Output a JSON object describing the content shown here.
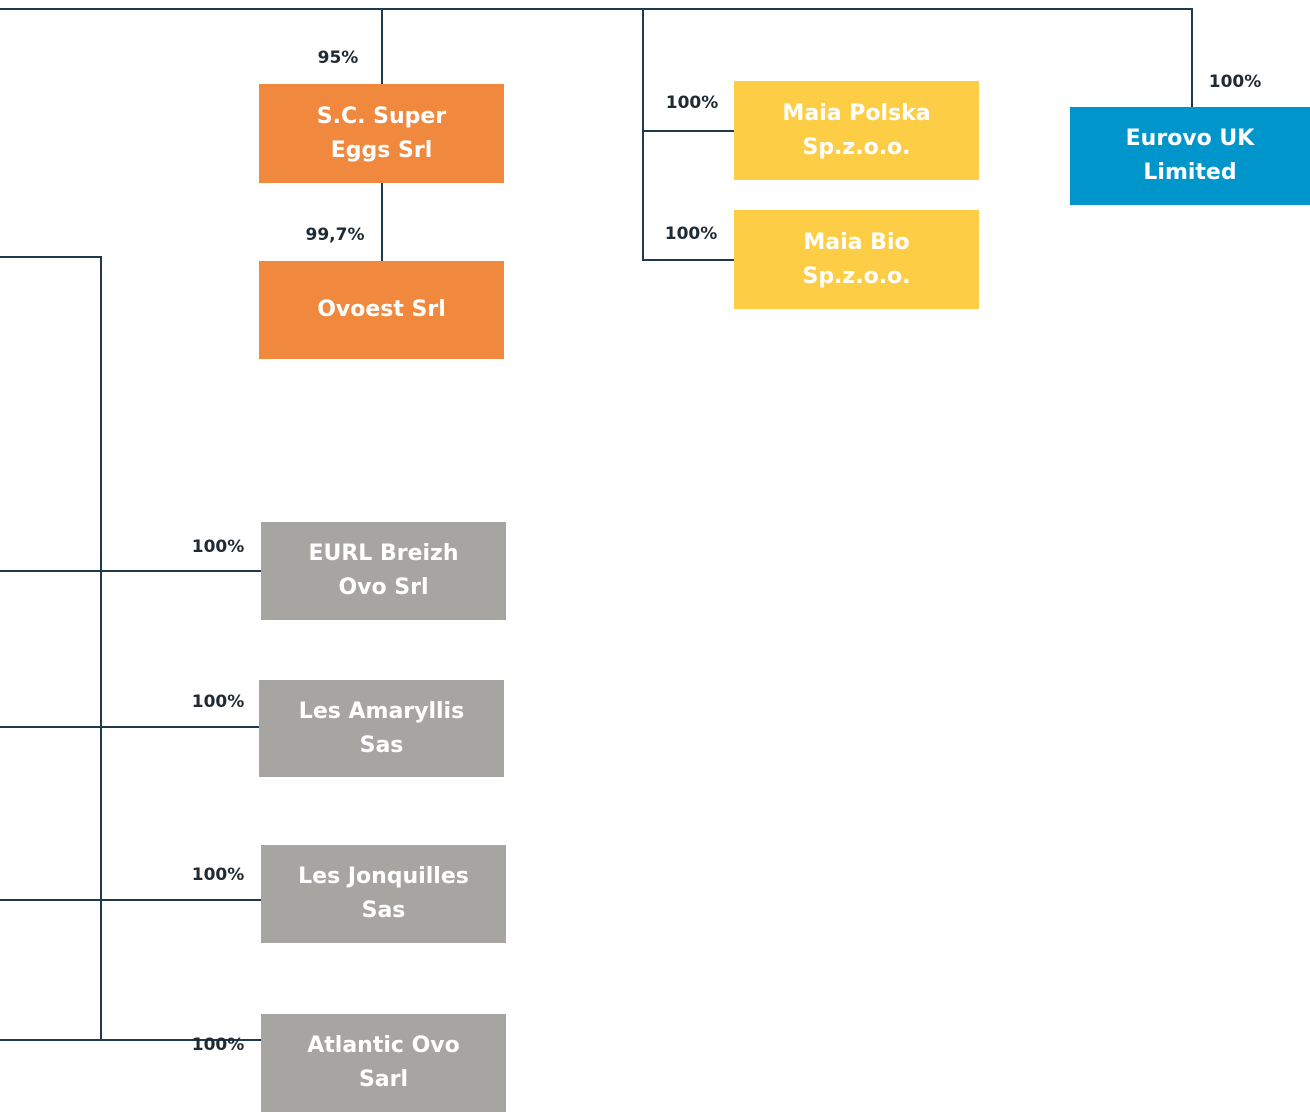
{
  "nodes": [
    {
      "label": [
        "S.C. Super",
        "Eggs Srl"
      ],
      "share": "95%"
    },
    {
      "label": [
        "Ovoest Srl"
      ],
      "share": "99,7%"
    },
    {
      "label": [
        "Maia Polska",
        "Sp.z.o.o."
      ],
      "share": "100%"
    },
    {
      "label": [
        "Maia Bio",
        "Sp.z.o.o."
      ],
      "share": "100%"
    },
    {
      "label": [
        "Eurovo UK",
        "Limited"
      ],
      "share": "100%"
    },
    {
      "label": [
        "EURL Breizh",
        "Ovo Srl"
      ],
      "share": "100%"
    },
    {
      "label": [
        "Les Amaryllis",
        "Sas"
      ],
      "share": "100%"
    },
    {
      "label": [
        "Les Jonquilles",
        "Sas"
      ],
      "share": "100%"
    },
    {
      "label": [
        "Atlantic Ovo",
        "Sarl"
      ],
      "share": "100%"
    }
  ]
}
